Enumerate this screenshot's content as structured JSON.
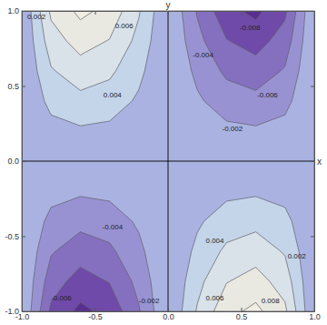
{
  "chart_data": {
    "type": "contour",
    "x_label": "x",
    "y_label": "y",
    "xlim": [
      -1,
      1
    ],
    "ylim": [
      -1,
      1
    ],
    "xticks": [
      {
        "value": -1,
        "label": "-1.0"
      },
      {
        "value": -0.5,
        "label": "-0.5"
      },
      {
        "value": 0,
        "label": "0.0"
      },
      {
        "value": 0.5,
        "label": "0.5"
      },
      {
        "value": 1,
        "label": "1.0"
      }
    ],
    "yticks": [
      {
        "value": -1,
        "label": "-1.0"
      },
      {
        "value": -0.5,
        "label": "-0.5"
      },
      {
        "value": 0,
        "label": "0.0"
      },
      {
        "value": 0.5,
        "label": "0.5"
      },
      {
        "value": 1,
        "label": "1.0"
      }
    ],
    "x": [
      -1,
      -0.8,
      -0.6,
      -0.4,
      -0.2,
      0,
      0.2,
      0.4,
      0.6,
      0.8,
      1
    ],
    "y": [
      -1,
      -0.8,
      -0.6,
      -0.4,
      -0.2,
      0,
      0.2,
      0.4,
      0.6,
      0.8,
      1
    ],
    "z": [
      [
        0,
        -0.0064,
        -0.0085,
        -0.0074,
        -0.0042,
        0,
        0.0042,
        0.0074,
        0.0085,
        0.0064,
        0
      ],
      [
        0,
        -0.0051,
        -0.0068,
        -0.0059,
        -0.0034,
        0,
        0.0034,
        0.0059,
        0.0068,
        0.0051,
        0
      ],
      [
        0,
        -0.0038,
        -0.0051,
        -0.0044,
        -0.0025,
        0,
        0.0025,
        0.0044,
        0.0051,
        0.0038,
        0
      ],
      [
        0,
        -0.0026,
        -0.0034,
        -0.003,
        -0.0017,
        0,
        0.0017,
        0.003,
        0.0034,
        0.0026,
        0
      ],
      [
        0,
        -0.0013,
        -0.0017,
        -0.0015,
        -0.0008,
        0,
        0.0008,
        0.0015,
        0.0017,
        0.0013,
        0
      ],
      [
        0,
        0,
        0,
        0,
        0,
        0,
        0,
        0,
        0,
        0,
        0
      ],
      [
        0,
        0.0013,
        0.0017,
        0.0015,
        0.0008,
        0,
        -0.0008,
        -0.0015,
        -0.0017,
        -0.0013,
        0
      ],
      [
        0,
        0.0026,
        0.0034,
        0.003,
        0.0017,
        0,
        -0.0017,
        -0.003,
        -0.0034,
        -0.0026,
        0
      ],
      [
        0,
        0.0038,
        0.0051,
        0.0044,
        0.0025,
        0,
        -0.0025,
        -0.0044,
        -0.0051,
        -0.0038,
        0
      ],
      [
        0,
        0.0051,
        0.0068,
        0.0059,
        0.0034,
        0,
        -0.0034,
        -0.0059,
        -0.0068,
        -0.0051,
        0
      ],
      [
        0,
        0.0064,
        0.0085,
        0.0074,
        0.0042,
        0,
        -0.0042,
        -0.0074,
        -0.0085,
        -0.0064,
        0
      ]
    ],
    "levels": [
      -0.008,
      -0.006,
      -0.004,
      -0.002,
      0.002,
      0.004,
      0.006,
      0.008
    ],
    "colors": [
      "#5a2e91",
      "#6f4aa8",
      "#8470bf",
      "#9992d2",
      "#a9b2e0",
      "#c4d5ea",
      "#d9e2e8",
      "#e9e8e1",
      "#f1ede2"
    ],
    "contour_labels": [
      {
        "value": 0.002,
        "x": -0.9,
        "y": 0.96
      },
      {
        "value": 0.006,
        "x": -0.3,
        "y": 0.9
      },
      {
        "value": 0.004,
        "x": -0.38,
        "y": 0.44
      },
      {
        "value": -0.008,
        "x": 0.56,
        "y": 0.89
      },
      {
        "value": -0.004,
        "x": 0.24,
        "y": 0.71
      },
      {
        "value": -0.006,
        "x": 0.68,
        "y": 0.44
      },
      {
        "value": -0.002,
        "x": 0.44,
        "y": 0.22
      },
      {
        "value": -0.004,
        "x": -0.38,
        "y": -0.44
      },
      {
        "value": -0.006,
        "x": -0.73,
        "y": -0.91
      },
      {
        "value": -0.002,
        "x": -0.13,
        "y": -0.93
      },
      {
        "value": 0.004,
        "x": 0.32,
        "y": -0.53
      },
      {
        "value": 0.002,
        "x": 0.88,
        "y": -0.63
      },
      {
        "value": 0.006,
        "x": 0.32,
        "y": -0.91
      },
      {
        "value": 0.008,
        "x": 0.7,
        "y": -0.93
      }
    ]
  }
}
